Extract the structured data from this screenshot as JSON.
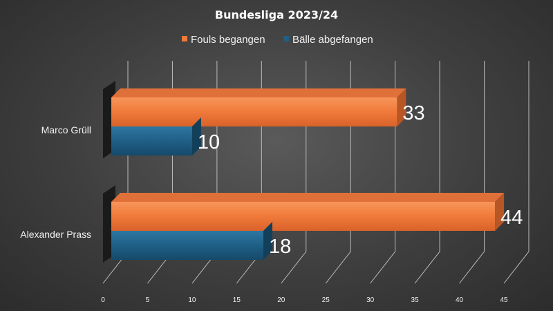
{
  "chart_data": {
    "type": "bar",
    "orientation": "horizontal",
    "title": "Bundesliga 2023/24",
    "categories": [
      "Marco Grüll",
      "Alexander Prass"
    ],
    "series": [
      {
        "name": "Fouls begangen",
        "values": [
          33,
          44
        ],
        "color": "#f07a3a"
      },
      {
        "name": "Bälle abgefangen",
        "values": [
          10,
          18
        ],
        "color": "#1f5f86"
      }
    ],
    "xlim": [
      0,
      45
    ],
    "xticks": [
      0,
      5,
      10,
      15,
      20,
      25,
      30,
      35,
      40,
      45
    ],
    "grid": true,
    "legend_position": "top",
    "data_labels": true,
    "style": "3d"
  }
}
